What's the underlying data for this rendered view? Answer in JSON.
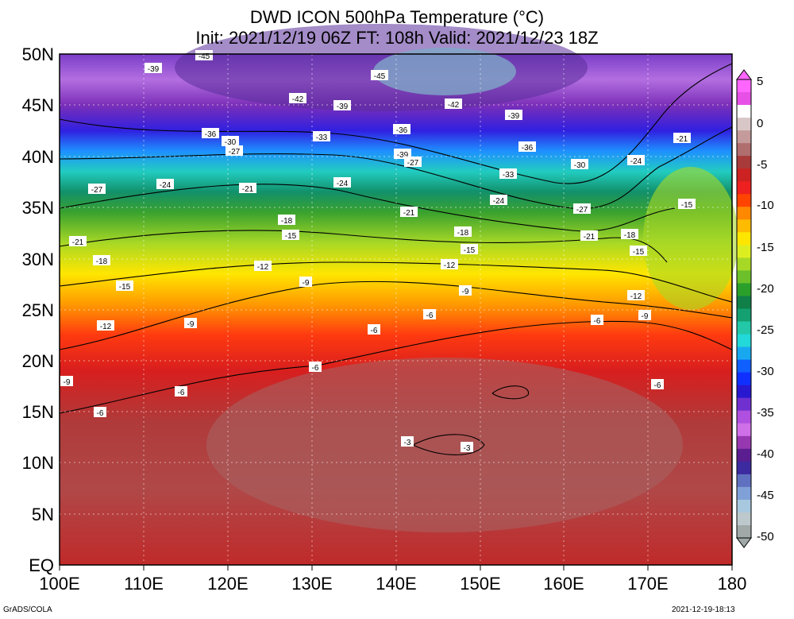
{
  "title_line1": "DWD ICON 500hPa Temperature (°C)",
  "title_line2": "Init: 2021/12/19 06Z  FT: 108h  Valid: 2021/12/23 18Z",
  "lat_labels": [
    "50N",
    "45N",
    "40N",
    "35N",
    "30N",
    "25N",
    "20N",
    "15N",
    "10N",
    "5N",
    "EQ"
  ],
  "lon_labels": [
    "100E",
    "110E",
    "120E",
    "130E",
    "140E",
    "150E",
    "160E",
    "170E",
    "180"
  ],
  "colorbar": {
    "labels": [
      "5",
      "0",
      "-5",
      "-10",
      "-15",
      "-20",
      "-25",
      "-30",
      "-35",
      "-40",
      "-45",
      "-50"
    ],
    "colors": [
      "#ff66ff",
      "#e650e6",
      "#ffffff",
      "#d9c7c7",
      "#c49a9a",
      "#b06e6e",
      "#a83a3a",
      "#cc2222",
      "#ee2020",
      "#ff4400",
      "#ff8800",
      "#ffbb00",
      "#ffe600",
      "#ddee20",
      "#a8d826",
      "#6cc02a",
      "#2aa02a",
      "#108048",
      "#14a070",
      "#22c8a8",
      "#22d8d8",
      "#18a8f0",
      "#1060ff",
      "#1030ff",
      "#2818d0",
      "#7030d0",
      "#b050e0",
      "#d070e8",
      "#9838b0",
      "#5a1e90",
      "#3c2aa0",
      "#6070c0",
      "#80a0d8",
      "#a8c8e0",
      "#bcc8cc",
      "#a0a8a8"
    ]
  },
  "contour_labels": [
    "-45",
    "-45",
    "-42",
    "-42",
    "-39",
    "-39",
    "-39",
    "-39",
    "-36",
    "-36",
    "-36",
    "-33",
    "-33",
    "-30",
    "-30",
    "-27",
    "-27",
    "-27",
    "-27",
    "-24",
    "-24",
    "-24",
    "-24",
    "-21",
    "-21",
    "-21",
    "-21",
    "-21",
    "-18",
    "-18",
    "-18",
    "-18",
    "-15",
    "-15",
    "-15",
    "-15",
    "-15",
    "-12",
    "-12",
    "-12",
    "-12",
    "-9",
    "-9",
    "-9",
    "-9",
    "-9",
    "-6",
    "-6",
    "-6",
    "-6",
    "-6",
    "-6",
    "-6",
    "-3",
    "-3"
  ],
  "footer_left": "GrADS/COLA",
  "footer_right": "2021-12-19-18:13"
}
